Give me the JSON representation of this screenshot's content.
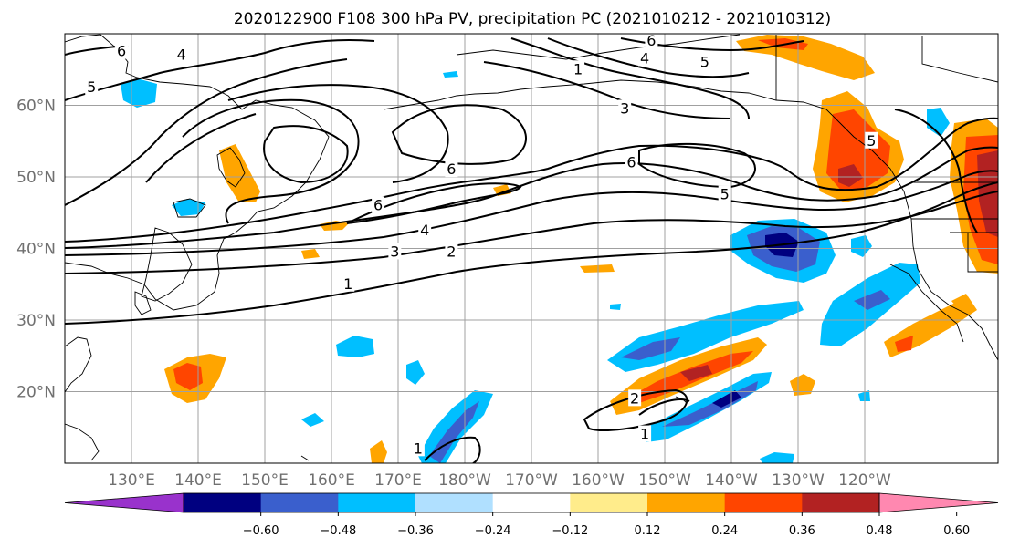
{
  "title": "2020122900 F108 300 hPa PV, precipitation PC (2021010212 - 2021010312)",
  "map": {
    "lon_range": [
      120,
      -100
    ],
    "lat_range": [
      10,
      70
    ],
    "lat_ticks": [
      {
        "value": 20,
        "label": "20°N"
      },
      {
        "value": 30,
        "label": "30°N"
      },
      {
        "value": 40,
        "label": "40°N"
      },
      {
        "value": 50,
        "label": "50°N"
      },
      {
        "value": 60,
        "label": "60°N"
      }
    ],
    "lon_ticks": [
      {
        "value": 130,
        "label": "130°E"
      },
      {
        "value": 140,
        "label": "140°E"
      },
      {
        "value": 150,
        "label": "150°E"
      },
      {
        "value": 160,
        "label": "160°E"
      },
      {
        "value": 170,
        "label": "170°E"
      },
      {
        "value": 180,
        "label": "180°W"
      },
      {
        "value": 190,
        "label": "170°W"
      },
      {
        "value": 200,
        "label": "160°W"
      },
      {
        "value": 210,
        "label": "150°W"
      },
      {
        "value": 220,
        "label": "140°W"
      },
      {
        "value": 230,
        "label": "130°W"
      },
      {
        "value": 240,
        "label": "120°W"
      }
    ],
    "pv_contour_labels": [
      {
        "text": "6",
        "lon": 128.5,
        "lat": 67.5
      },
      {
        "text": "5",
        "lon": 124,
        "lat": 62.5
      },
      {
        "text": "4",
        "lon": 137.5,
        "lat": 67
      },
      {
        "text": "1",
        "lon": 197,
        "lat": 65
      },
      {
        "text": "6",
        "lon": 208,
        "lat": 69
      },
      {
        "text": "4",
        "lon": 207,
        "lat": 66.5
      },
      {
        "text": "5",
        "lon": 216,
        "lat": 66
      },
      {
        "text": "3",
        "lon": 204,
        "lat": 59.5
      },
      {
        "text": "6",
        "lon": 205,
        "lat": 52
      },
      {
        "text": "6",
        "lon": 178,
        "lat": 51
      },
      {
        "text": "6",
        "lon": 167,
        "lat": 46
      },
      {
        "text": "4",
        "lon": 174,
        "lat": 42.5
      },
      {
        "text": "3",
        "lon": 169.5,
        "lat": 39.5
      },
      {
        "text": "2",
        "lon": 178,
        "lat": 39.5
      },
      {
        "text": "1",
        "lon": 162.5,
        "lat": 35
      },
      {
        "text": "5",
        "lon": 219,
        "lat": 47.5
      },
      {
        "text": "5",
        "lon": 241,
        "lat": 55
      },
      {
        "text": "1",
        "lon": 207,
        "lat": 14
      },
      {
        "text": "2",
        "lon": 205.5,
        "lat": 19
      },
      {
        "text": "1",
        "lon": 173,
        "lat": 12
      }
    ],
    "colors": {
      "pos_012_024": "#ffec8b",
      "pos_024_036": "#ffa500",
      "pos_036_048": "#ff4500",
      "pos_048_060": "#b22222",
      "pos_over_060": "#ff88b0",
      "neg_012_024": "#b0e0ff",
      "neg_024_036": "#00bfff",
      "neg_036_048": "#3a5fcd",
      "neg_048_060": "#000080",
      "neg_under_060": "#9932cc",
      "contour": "#000000",
      "coast": "#000000",
      "grid": "#a0a0a0"
    }
  },
  "colorbar": {
    "colors": [
      "#9932cc",
      "#000080",
      "#3a5fcd",
      "#00bfff",
      "#b0e0ff",
      "#ffffff",
      "#ffec8b",
      "#ffa500",
      "#ff4500",
      "#b22222",
      "#ff88b0"
    ],
    "ticks": [
      "−0.60",
      "−0.48",
      "−0.36",
      "−0.24",
      "−0.12",
      "0.12",
      "0.24",
      "0.36",
      "0.48",
      "0.60"
    ]
  }
}
